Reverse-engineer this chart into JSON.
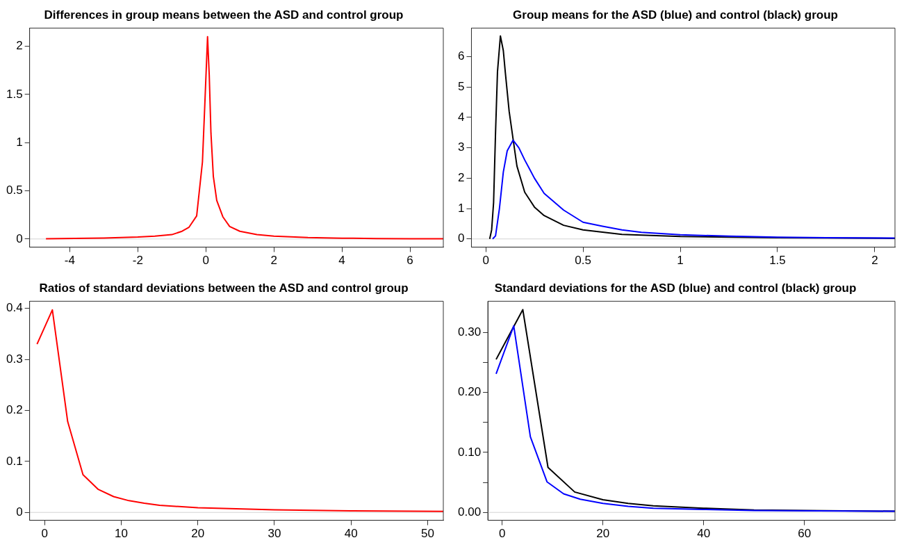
{
  "chart_data": [
    {
      "type": "line",
      "title": "Differences in group means between the ASD and control group",
      "xlim": [
        -5.18,
        6.98
      ],
      "xticks": [
        -4,
        -2,
        0,
        2,
        4,
        6
      ],
      "ylim": [
        -0.085,
        2.19
      ],
      "yticks": [
        0,
        0.5,
        1,
        1.5,
        2
      ],
      "ref_lines": [
        {
          "axis": "y",
          "value": 0,
          "color": "#d3d3d3"
        }
      ],
      "series": [
        {
          "color": "#ff0000",
          "x": [
            -4.7,
            -3,
            -2,
            -1.5,
            -1,
            -0.7,
            -0.5,
            -0.27,
            -0.1,
            -0.03,
            0.05,
            0.1,
            0.15,
            0.22,
            0.32,
            0.5,
            0.7,
            1,
            1.5,
            2,
            3,
            4,
            5,
            6,
            6.98
          ],
          "values": [
            0.003,
            0.01,
            0.02,
            0.03,
            0.045,
            0.08,
            0.12,
            0.24,
            0.8,
            1.4,
            2.1,
            1.7,
            1.1,
            0.65,
            0.4,
            0.23,
            0.13,
            0.08,
            0.045,
            0.03,
            0.015,
            0.008,
            0.005,
            0.003,
            0.002
          ]
        }
      ]
    },
    {
      "type": "line",
      "title": "Group means for the ASD (blue) and control (black) group",
      "xlim": [
        -0.074,
        2.104
      ],
      "xticks": [
        0,
        0.5,
        1,
        1.5,
        2
      ],
      "ylim": [
        -0.27,
        6.94
      ],
      "yticks": [
        0,
        1,
        2,
        3,
        4,
        5,
        6
      ],
      "ref_lines": [
        {
          "axis": "y",
          "value": 0,
          "color": "#d3d3d3"
        }
      ],
      "series": [
        {
          "color": "#000000",
          "x": [
            0.02,
            0.03,
            0.04,
            0.05,
            0.06,
            0.075,
            0.09,
            0.1,
            0.12,
            0.14,
            0.16,
            0.2,
            0.25,
            0.3,
            0.4,
            0.5,
            0.7,
            1,
            1.5,
            2.104
          ],
          "values": [
            0,
            0.3,
            1.2,
            3.5,
            5.5,
            6.68,
            6.2,
            5.5,
            4.2,
            3.3,
            2.4,
            1.54,
            1.05,
            0.77,
            0.45,
            0.3,
            0.15,
            0.08,
            0.04,
            0.02
          ]
        },
        {
          "color": "#0000ff",
          "x": [
            0.035,
            0.05,
            0.07,
            0.09,
            0.11,
            0.14,
            0.17,
            0.2,
            0.25,
            0.3,
            0.4,
            0.5,
            0.6,
            0.7,
            0.8,
            1,
            1.25,
            1.5,
            1.75,
            2.104
          ],
          "values": [
            0,
            0.1,
            1,
            2.2,
            2.9,
            3.25,
            3,
            2.6,
            2,
            1.5,
            0.95,
            0.55,
            0.42,
            0.3,
            0.22,
            0.14,
            0.09,
            0.06,
            0.04,
            0.03
          ]
        }
      ]
    },
    {
      "type": "line",
      "title": "Ratios of standard deviations between the ASD and control group",
      "xlim": [
        -1.97,
        52.05
      ],
      "xticks": [
        0,
        10,
        20,
        30,
        40,
        50
      ],
      "ylim": [
        -0.0155,
        0.414
      ],
      "yticks": [
        0,
        0.1,
        0.2,
        0.3,
        0.4
      ],
      "ref_lines": [
        {
          "axis": "y",
          "value": 0,
          "color": "#d3d3d3"
        }
      ],
      "series": [
        {
          "color": "#ff0000",
          "x": [
            -1,
            1,
            3,
            5,
            7,
            9,
            11,
            13,
            15,
            20,
            25,
            30,
            40,
            52.05
          ],
          "values": [
            0.33,
            0.397,
            0.178,
            0.074,
            0.045,
            0.031,
            0.023,
            0.018,
            0.014,
            0.009,
            0.007,
            0.005,
            0.003,
            0.002
          ]
        }
      ]
    },
    {
      "type": "line",
      "title": "Standard deviations for the ASD (blue) and control (black) group",
      "xlim": [
        -2.84,
        77.97
      ],
      "xticks": [
        0,
        20,
        40,
        60
      ],
      "ylim": [
        -0.0132,
        0.352
      ],
      "yticks": [
        {
          "value": 0,
          "label": "0.00"
        },
        {
          "value": 0.05,
          "label": null
        },
        {
          "value": 0.1,
          "label": "0.10"
        },
        {
          "value": 0.15,
          "label": null
        },
        {
          "value": 0.2,
          "label": "0.20"
        },
        {
          "value": 0.25,
          "label": null
        },
        {
          "value": 0.3,
          "label": "0.30"
        }
      ],
      "ref_lines": [
        {
          "axis": "y",
          "value": 0,
          "color": "#d3d3d3"
        }
      ],
      "series": [
        {
          "color": "#000000",
          "x": [
            -1.2,
            4.1,
            9.1,
            14.4,
            20,
            25,
            30,
            40,
            50,
            60,
            77.97
          ],
          "values": [
            0.255,
            0.338,
            0.075,
            0.034,
            0.021,
            0.015,
            0.011,
            0.007,
            0.004,
            0.003,
            0.002
          ]
        },
        {
          "color": "#0000ff",
          "x": [
            -1.2,
            2.3,
            5.6,
            8.9,
            12.2,
            15.5,
            20,
            25,
            30,
            40,
            50,
            77.97
          ],
          "values": [
            0.231,
            0.311,
            0.126,
            0.051,
            0.031,
            0.022,
            0.015,
            0.01,
            0.007,
            0.005,
            0.003,
            0.002
          ]
        }
      ]
    }
  ]
}
